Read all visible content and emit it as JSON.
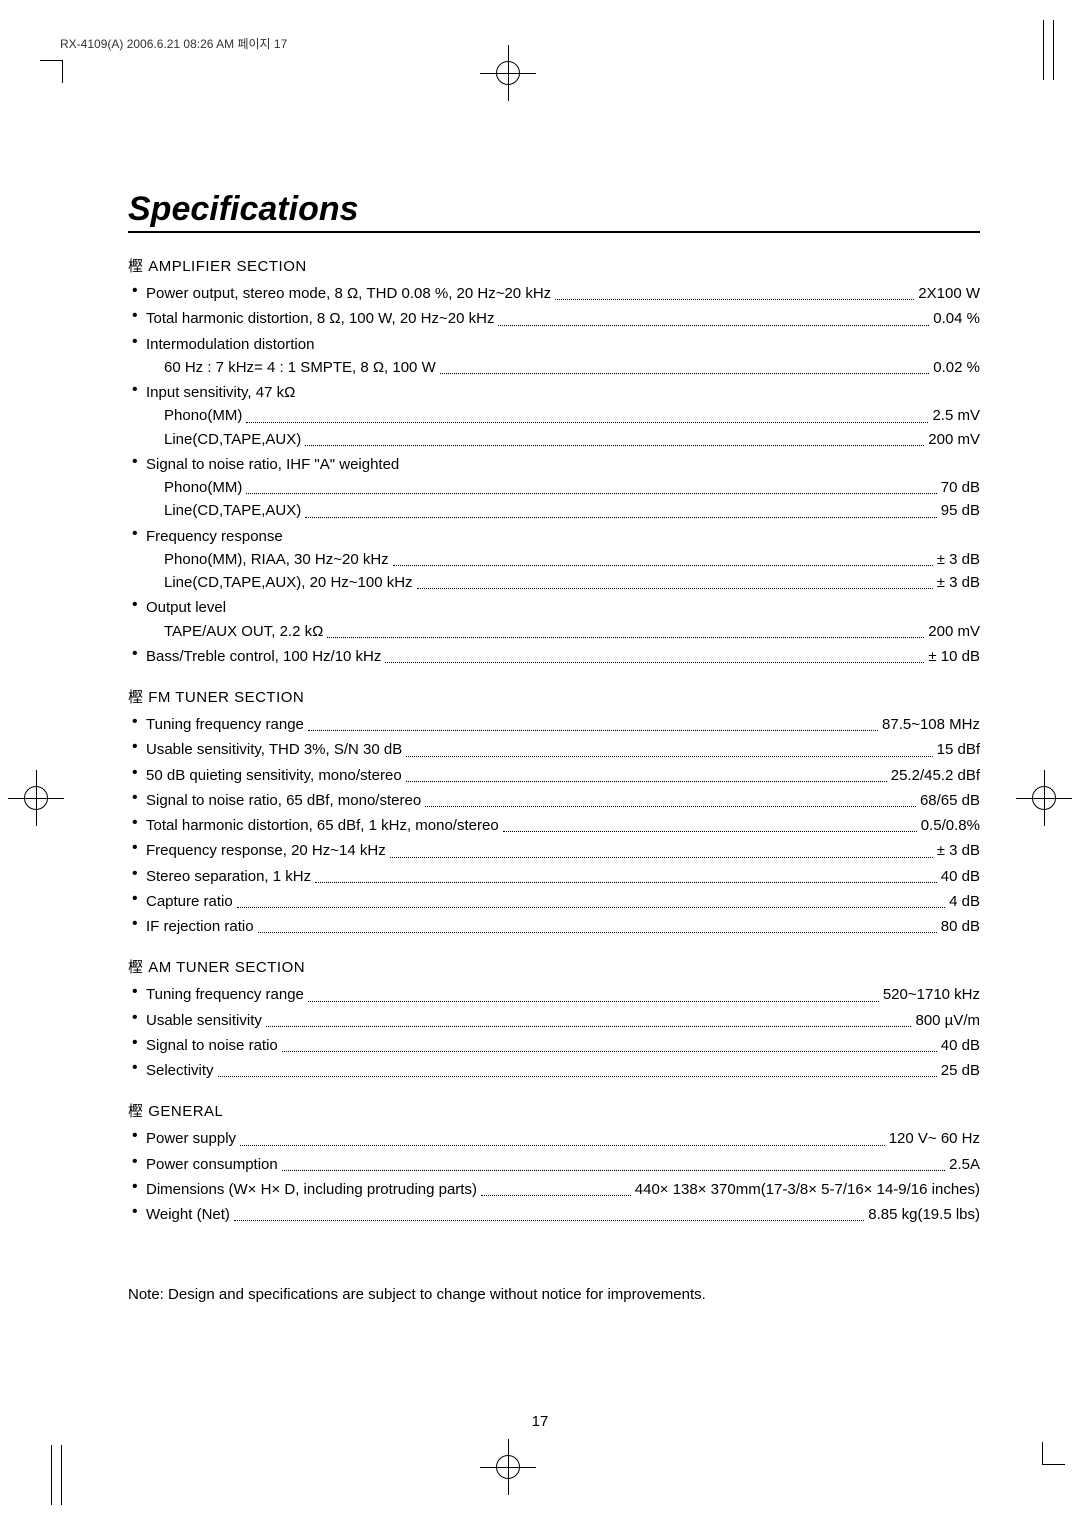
{
  "header": "RX-4109(A)  2006.6.21 08:26 AM  페이지 17",
  "title": "Specifications",
  "glyph": "樫",
  "sections": [
    {
      "title": "AMPLIFIER SECTION",
      "items": [
        {
          "label": "Power output, stereo mode, 8 Ω, THD 0.08 %, 20 Hz~20 kHz",
          "value": "2X100 W"
        },
        {
          "label": "Total harmonic distortion, 8 Ω, 100 W, 20 Hz~20 kHz",
          "value": "0.04 %"
        },
        {
          "label": "Intermodulation distortion",
          "sub": [
            {
              "label": "60 Hz : 7 kHz= 4 : 1 SMPTE, 8 Ω, 100 W",
              "value": "0.02 %"
            }
          ]
        },
        {
          "label": "Input sensitivity, 47 kΩ",
          "sub": [
            {
              "label": "Phono(MM)",
              "value": "2.5 mV"
            },
            {
              "label": "Line(CD,TAPE,AUX)",
              "value": "200 mV"
            }
          ]
        },
        {
          "label": "Signal to noise ratio, IHF \"A\" weighted",
          "sub": [
            {
              "label": "Phono(MM)",
              "value": "70 dB"
            },
            {
              "label": "Line(CD,TAPE,AUX)",
              "value": "95 dB"
            }
          ]
        },
        {
          "label": "Frequency response",
          "sub": [
            {
              "label": "Phono(MM), RIAA, 30 Hz~20 kHz",
              "value": "± 3 dB"
            },
            {
              "label": "Line(CD,TAPE,AUX), 20 Hz~100 kHz",
              "value": "± 3 dB"
            }
          ]
        },
        {
          "label": "Output level",
          "sub": [
            {
              "label": "TAPE/AUX OUT, 2.2 kΩ",
              "value": "200 mV"
            }
          ]
        },
        {
          "label": "Bass/Treble control, 100 Hz/10 kHz",
          "value": "± 10 dB"
        }
      ]
    },
    {
      "title": "FM TUNER SECTION",
      "items": [
        {
          "label": "Tuning frequency range",
          "value": "87.5~108 MHz"
        },
        {
          "label": "Usable sensitivity, THD 3%, S/N 30 dB",
          "value": "15 dBf"
        },
        {
          "label": "50 dB quieting sensitivity, mono/stereo",
          "value": "25.2/45.2 dBf"
        },
        {
          "label": "Signal to noise ratio, 65 dBf, mono/stereo",
          "value": "68/65 dB"
        },
        {
          "label": "Total harmonic distortion, 65 dBf, 1 kHz, mono/stereo",
          "value": "0.5/0.8%"
        },
        {
          "label": "Frequency response, 20 Hz~14 kHz",
          "value": "± 3 dB"
        },
        {
          "label": "Stereo separation, 1 kHz",
          "value": "40 dB"
        },
        {
          "label": "Capture ratio",
          "value": "4 dB"
        },
        {
          "label": "IF rejection ratio",
          "value": "80 dB"
        }
      ]
    },
    {
      "title": "AM TUNER SECTION",
      "items": [
        {
          "label": "Tuning frequency range",
          "value": "520~1710 kHz"
        },
        {
          "label": "Usable sensitivity",
          "value": "800 µV/m"
        },
        {
          "label": "Signal to noise ratio",
          "value": "40 dB"
        },
        {
          "label": "Selectivity",
          "value": "25 dB"
        }
      ]
    },
    {
      "title": "GENERAL",
      "items": [
        {
          "label": "Power supply",
          "value": "120 V~ 60 Hz"
        },
        {
          "label": "Power consumption",
          "value": "2.5A"
        },
        {
          "label": "Dimensions (W× H× D, including protruding parts)",
          "value": "440× 138× 370mm(17-3/8× 5-7/16× 14-9/16 inches)"
        },
        {
          "label": "Weight (Net)",
          "value": "8.85 kg(19.5 lbs)"
        }
      ]
    }
  ],
  "note": "Note: Design and specifications are subject to change without notice for improvements.",
  "page_number": "17"
}
